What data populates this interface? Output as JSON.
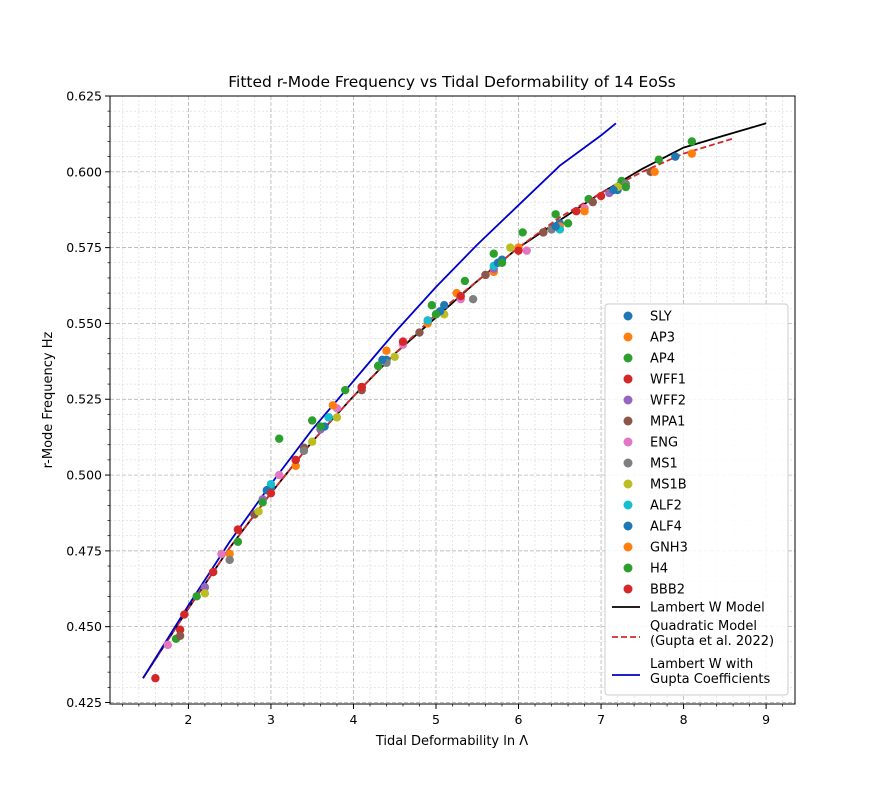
{
  "chart_data": {
    "type": "scatter",
    "title": "Fitted r-Mode Frequency vs Tidal Deformability of 14 EoSs",
    "xlabel": "Tidal Deformability ln Λ",
    "ylabel": "r-Mode Frequency Hz",
    "xlim": [
      1.05,
      9.35
    ],
    "ylim": [
      0.4245,
      0.625
    ],
    "xticks": [
      2,
      3,
      4,
      5,
      6,
      7,
      8,
      9
    ],
    "yticks": [
      0.425,
      0.45,
      0.475,
      0.5,
      0.525,
      0.55,
      0.575,
      0.6,
      0.625
    ],
    "xtick_labels": [
      "2",
      "3",
      "4",
      "5",
      "6",
      "7",
      "8",
      "9"
    ],
    "ytick_labels": [
      "0.425",
      "0.450",
      "0.475",
      "0.500",
      "0.525",
      "0.550",
      "0.575",
      "0.600",
      "0.625"
    ],
    "grid": "major and minor, dashed",
    "legend_position": "lower right",
    "series": [
      {
        "name": "SLY",
        "color": "#1f77b4",
        "x": [
          2.3,
          3.0,
          3.7,
          4.4,
          5.1,
          5.8,
          6.5,
          7.2,
          7.9
        ],
        "y": [
          0.468,
          0.496,
          0.519,
          0.538,
          0.556,
          0.571,
          0.583,
          0.594,
          0.605
        ]
      },
      {
        "name": "AP3",
        "color": "#ff7f0e",
        "x": [
          2.5,
          3.3,
          4.1,
          4.9,
          5.7,
          6.5,
          7.3,
          8.1
        ],
        "y": [
          0.474,
          0.503,
          0.529,
          0.55,
          0.567,
          0.582,
          0.595,
          0.606
        ]
      },
      {
        "name": "AP4",
        "color": "#2ca02c",
        "x": [
          1.85,
          2.6,
          3.1,
          3.5,
          3.9,
          4.95,
          5.35,
          5.7,
          6.05,
          6.45,
          6.85,
          7.25,
          7.7,
          8.1
        ],
        "y": [
          0.446,
          0.478,
          0.512,
          0.518,
          0.528,
          0.556,
          0.564,
          0.573,
          0.58,
          0.586,
          0.591,
          0.597,
          0.604,
          0.61
        ]
      },
      {
        "name": "WFF1",
        "color": "#d62728",
        "x": [
          1.9,
          2.6,
          3.3,
          4.1,
          4.9,
          5.6,
          6.3,
          7.0
        ],
        "y": [
          0.449,
          0.482,
          0.505,
          0.529,
          0.551,
          0.566,
          0.58,
          0.592
        ]
      },
      {
        "name": "WFF2",
        "color": "#9467bd",
        "x": [
          2.2,
          2.9,
          3.6,
          4.3,
          5.0,
          5.7,
          6.4,
          7.1
        ],
        "y": [
          0.463,
          0.492,
          0.515,
          0.536,
          0.553,
          0.568,
          0.581,
          0.593
        ]
      },
      {
        "name": "MPA1",
        "color": "#8c564b",
        "x": [
          1.9,
          2.8,
          3.4,
          4.1,
          4.8,
          5.6,
          6.3,
          6.9,
          7.6
        ],
        "y": [
          0.447,
          0.487,
          0.509,
          0.528,
          0.547,
          0.566,
          0.58,
          0.59,
          0.6
        ]
      },
      {
        "name": "ENG",
        "color": "#e377c2",
        "x": [
          1.75,
          2.4,
          3.1,
          3.8,
          4.6,
          5.3,
          6.1,
          6.8
        ],
        "y": [
          0.444,
          0.474,
          0.5,
          0.522,
          0.543,
          0.558,
          0.574,
          0.588
        ]
      },
      {
        "name": "MS1",
        "color": "#7f7f7f",
        "x": [
          2.5,
          3.4,
          4.4,
          5.45,
          6.4,
          7.3
        ],
        "y": [
          0.472,
          0.508,
          0.537,
          0.558,
          0.581,
          0.596
        ]
      },
      {
        "name": "MS1B",
        "color": "#bcbd22",
        "x": [
          2.2,
          2.85,
          3.5,
          3.8,
          4.5,
          5.1,
          5.9,
          6.5,
          7.2
        ],
        "y": [
          0.461,
          0.488,
          0.511,
          0.519,
          0.539,
          0.553,
          0.575,
          0.581,
          0.595
        ]
      },
      {
        "name": "ALF2",
        "color": "#17becf",
        "x": [
          3.0,
          3.7,
          4.3,
          4.9,
          5.7,
          6.5
        ],
        "y": [
          0.497,
          0.519,
          0.536,
          0.551,
          0.569,
          0.581
        ]
      },
      {
        "name": "ALF4",
        "color": "#1f77b4",
        "x": [
          2.95,
          3.65,
          4.35,
          5.05,
          5.75,
          6.45,
          7.15
        ],
        "y": [
          0.495,
          0.516,
          0.538,
          0.554,
          0.57,
          0.582,
          0.594
        ]
      },
      {
        "name": "GNH3",
        "color": "#ff7f0e",
        "x": [
          3.75,
          4.4,
          5.25,
          6.0,
          6.8,
          7.65
        ],
        "y": [
          0.523,
          0.541,
          0.56,
          0.575,
          0.587,
          0.6
        ]
      },
      {
        "name": "H4",
        "color": "#2ca02c",
        "x": [
          2.1,
          2.9,
          3.6,
          4.3,
          5.0,
          5.8,
          6.6,
          7.3
        ],
        "y": [
          0.46,
          0.491,
          0.516,
          0.536,
          0.553,
          0.57,
          0.583,
          0.595
        ]
      },
      {
        "name": "BBB2",
        "color": "#d62728",
        "x": [
          1.6,
          1.95,
          2.3,
          2.6,
          3.0,
          3.3,
          4.1,
          4.6,
          5.3,
          6.0,
          6.7
        ],
        "y": [
          0.433,
          0.454,
          0.468,
          0.482,
          0.494,
          0.505,
          0.529,
          0.544,
          0.559,
          0.574,
          0.587
        ]
      }
    ],
    "lines": [
      {
        "name": "Lambert W Model",
        "color": "#000000",
        "dash": "solid",
        "x": [
          1.45,
          2.0,
          2.5,
          3.0,
          3.5,
          4.0,
          4.5,
          5.0,
          5.5,
          6.0,
          6.5,
          7.0,
          7.5,
          8.0,
          8.5,
          9.0
        ],
        "y": [
          0.433,
          0.456,
          0.476,
          0.494,
          0.511,
          0.526,
          0.54,
          0.552,
          0.564,
          0.575,
          0.584,
          0.593,
          0.601,
          0.608,
          0.612,
          0.616
        ]
      },
      {
        "name": "Quadratic Model\n(Gupta et al. 2022)",
        "color": "#d62728",
        "dash": "dashed",
        "x": [
          1.45,
          2.0,
          2.5,
          3.0,
          3.5,
          4.0,
          4.5,
          5.0,
          5.5,
          6.0,
          6.5,
          7.0,
          7.5,
          8.0,
          8.6
        ],
        "y": [
          0.433,
          0.456,
          0.476,
          0.494,
          0.511,
          0.526,
          0.54,
          0.553,
          0.564,
          0.575,
          0.585,
          0.593,
          0.6,
          0.606,
          0.611
        ]
      },
      {
        "name": "Lambert W with\nGupta Coefficients",
        "color": "#0000cc",
        "dash": "solid",
        "x": [
          1.45,
          2.0,
          2.5,
          3.0,
          3.5,
          4.0,
          4.5,
          5.0,
          5.5,
          6.0,
          6.5,
          7.0,
          7.18
        ],
        "y": [
          0.433,
          0.457,
          0.478,
          0.497,
          0.515,
          0.531,
          0.547,
          0.562,
          0.576,
          0.589,
          0.602,
          0.612,
          0.616
        ]
      }
    ]
  }
}
